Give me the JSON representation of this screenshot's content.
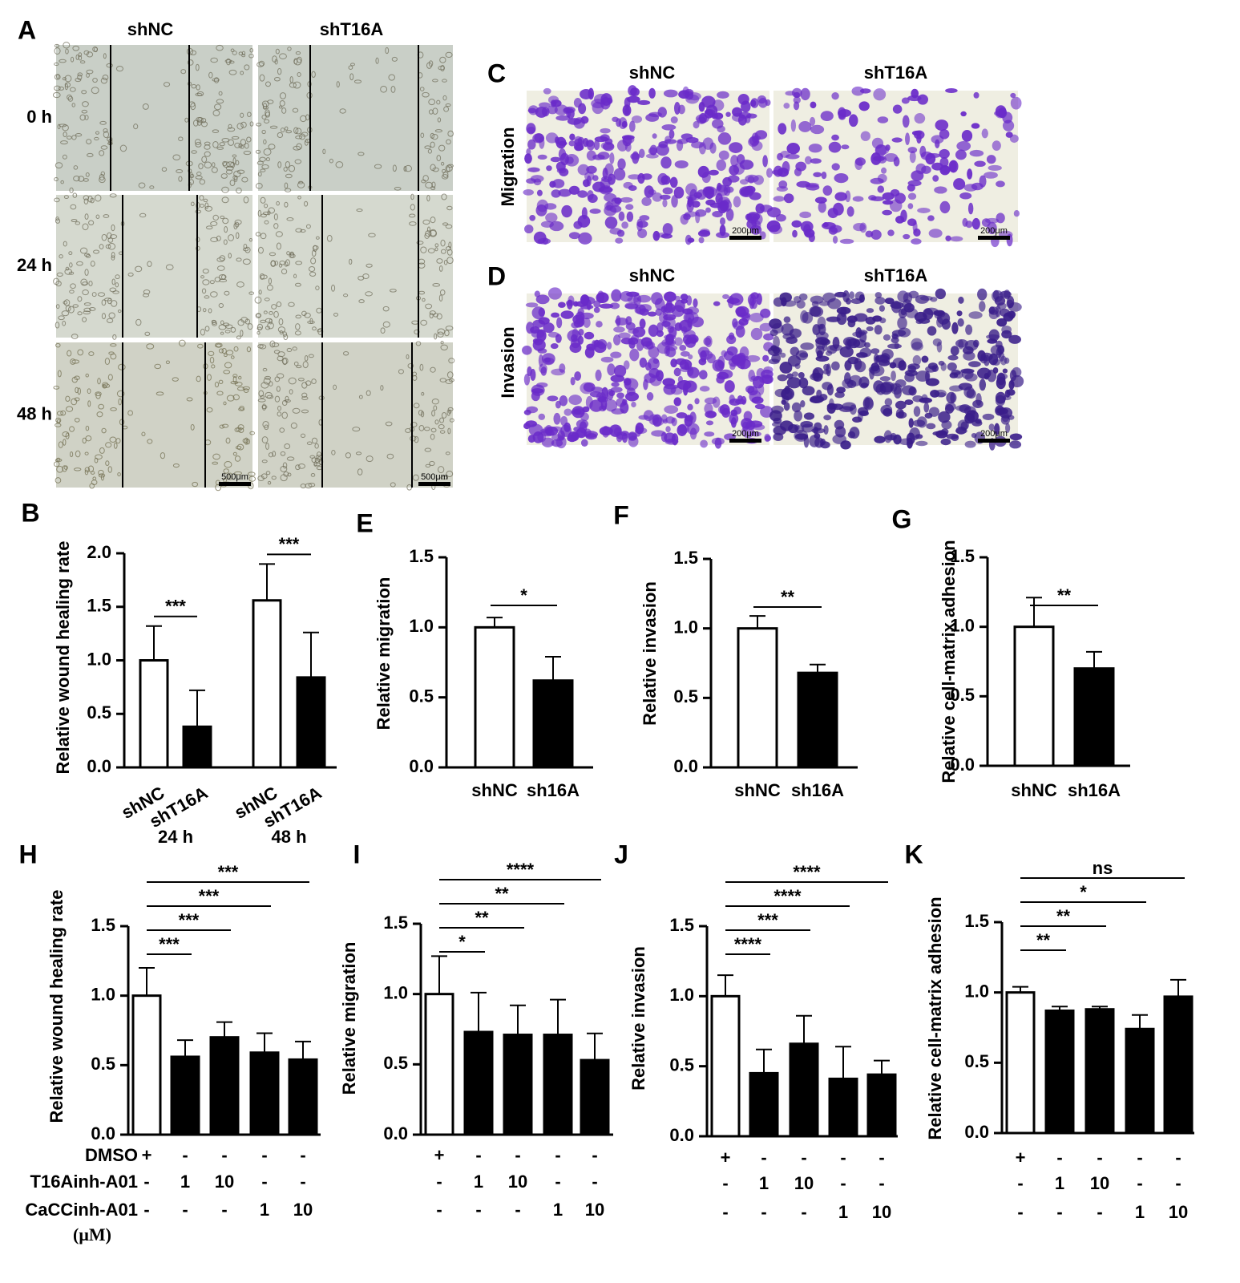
{
  "image_panels": [
    {
      "panel": "A",
      "columns": [
        "shNC",
        "shT16A"
      ],
      "rows": [
        "0 h",
        "24 h",
        "48 h"
      ],
      "scale_bar": "500μm"
    },
    {
      "panel": "C",
      "columns": [
        "shNC",
        "shT16A"
      ],
      "row_label": "Migration",
      "scale_bar": "200μm"
    },
    {
      "panel": "D",
      "columns": [
        "shNC",
        "shT16A"
      ],
      "row_label": "Invasion",
      "scale_bar": "200μm"
    }
  ],
  "chart_data": [
    {
      "type": "grouped_bar",
      "panel": "B",
      "y_label": "Relative wound healing rate",
      "groups": [
        "24 h",
        "48 h"
      ],
      "series": [
        {
          "name": "shNC",
          "color": "#ffffff",
          "values": [
            1.0,
            1.56
          ],
          "errors": [
            0.32,
            0.34
          ]
        },
        {
          "name": "shT16A",
          "color": "#000000",
          "values": [
            0.38,
            0.84
          ],
          "errors": [
            0.34,
            0.42
          ]
        }
      ],
      "significance": [
        "***",
        "***"
      ],
      "ylim": [
        0,
        2
      ],
      "yticks": [
        {
          "value": 0,
          "label": "0.0"
        },
        0.5,
        {
          "value": 1,
          "label": "1.0"
        },
        1.5,
        {
          "value": 2,
          "label": "2.0"
        }
      ]
    },
    {
      "type": "bar",
      "panel": "E",
      "y_label": "Relative migration",
      "categories": [
        "shNC",
        "sh16A"
      ],
      "values": [
        1.0,
        0.62
      ],
      "errors": [
        0.07,
        0.17
      ],
      "colors": [
        "#ffffff",
        "#000000"
      ],
      "significance": "*",
      "ylim": [
        0,
        1.5
      ],
      "yticks": [
        {
          "value": 0,
          "label": "0.0"
        },
        0.5,
        {
          "value": 1,
          "label": "1.0"
        },
        1.5
      ]
    },
    {
      "type": "bar",
      "panel": "F",
      "y_label": "Relative invasion",
      "categories": [
        "shNC",
        "sh16A"
      ],
      "values": [
        1.0,
        0.68
      ],
      "errors": [
        0.09,
        0.06
      ],
      "colors": [
        "#ffffff",
        "#000000"
      ],
      "significance": "**",
      "ylim": [
        0,
        1.5
      ],
      "yticks": [
        {
          "value": 0,
          "label": "0.0"
        },
        0.5,
        {
          "value": 1,
          "label": "1.0"
        },
        1.5
      ]
    },
    {
      "type": "bar",
      "panel": "G",
      "y_label": "Relative cell-matrix adhesion",
      "categories": [
        "shNC",
        "sh16A"
      ],
      "values": [
        1.0,
        0.7
      ],
      "errors": [
        0.21,
        0.12
      ],
      "colors": [
        "#ffffff",
        "#000000"
      ],
      "significance": "**",
      "ylim": [
        0,
        1.5
      ],
      "yticks": [
        {
          "value": 0,
          "label": "0.0"
        },
        0.5,
        {
          "value": 1,
          "label": "1.0"
        },
        1.5
      ]
    },
    {
      "type": "treatment_bar",
      "panel": "H",
      "y_label": "Relative wound healing rate",
      "values": [
        1.0,
        0.56,
        0.7,
        0.59,
        0.54
      ],
      "errors": [
        0.2,
        0.12,
        0.11,
        0.14,
        0.13
      ],
      "colors": [
        "#ffffff",
        "#000000",
        "#000000",
        "#000000",
        "#000000"
      ],
      "significance": [
        "***",
        "***",
        "***",
        "***"
      ],
      "treatments": [
        {
          "name": "DMSO",
          "values": [
            "+",
            "-",
            "-",
            "-",
            "-"
          ]
        },
        {
          "name": "T16Ainh-A01",
          "values": [
            "-",
            "1",
            "10",
            "-",
            "-"
          ]
        },
        {
          "name": "CaCCinh-A01",
          "values": [
            "-",
            "-",
            "-",
            "1",
            "10"
          ]
        }
      ],
      "unit_label": "(μM)",
      "ylim": [
        0,
        1.5
      ],
      "yticks": [
        {
          "value": 0,
          "label": "0.0"
        },
        0.5,
        {
          "value": 1,
          "label": "1.0"
        },
        1.5
      ]
    },
    {
      "type": "treatment_bar",
      "panel": "I",
      "y_label": "Relative migration",
      "values": [
        1.0,
        0.73,
        0.71,
        0.71,
        0.53
      ],
      "errors": [
        0.27,
        0.28,
        0.21,
        0.25,
        0.19
      ],
      "colors": [
        "#ffffff",
        "#000000",
        "#000000",
        "#000000",
        "#000000"
      ],
      "significance": [
        "*",
        "**",
        "**",
        "****"
      ],
      "treatments": [
        {
          "values": [
            "+",
            "-",
            "-",
            "-",
            "-"
          ]
        },
        {
          "values": [
            "-",
            "1",
            "10",
            "-",
            "-"
          ]
        },
        {
          "values": [
            "-",
            "-",
            "-",
            "1",
            "10"
          ]
        }
      ],
      "ylim": [
        0,
        1.5
      ],
      "yticks": [
        {
          "value": 0,
          "label": "0.0"
        },
        0.5,
        {
          "value": 1,
          "label": "1.0"
        },
        1.5
      ]
    },
    {
      "type": "treatment_bar",
      "panel": "J",
      "y_label": "Relative invasion",
      "values": [
        1.0,
        0.45,
        0.66,
        0.41,
        0.44
      ],
      "errors": [
        0.15,
        0.17,
        0.2,
        0.23,
        0.1
      ],
      "colors": [
        "#ffffff",
        "#000000",
        "#000000",
        "#000000",
        "#000000"
      ],
      "significance": [
        "****",
        "***",
        "****",
        "****"
      ],
      "treatments": [
        {
          "values": [
            "+",
            "-",
            "-",
            "-",
            "-"
          ]
        },
        {
          "values": [
            "-",
            "1",
            "10",
            "-",
            "-"
          ]
        },
        {
          "values": [
            "-",
            "-",
            "-",
            "1",
            "10"
          ]
        }
      ],
      "ylim": [
        0,
        1.5
      ],
      "yticks": [
        {
          "value": 0,
          "label": "0.0"
        },
        0.5,
        {
          "value": 1,
          "label": "1.0"
        },
        1.5
      ]
    },
    {
      "type": "treatment_bar",
      "panel": "K",
      "y_label": "Relative cell-matrix adhesion",
      "values": [
        1.0,
        0.87,
        0.88,
        0.74,
        0.97
      ],
      "errors": [
        0.04,
        0.03,
        0.02,
        0.1,
        0.12
      ],
      "colors": [
        "#ffffff",
        "#000000",
        "#000000",
        "#000000",
        "#000000"
      ],
      "significance": [
        "**",
        "**",
        "*",
        "ns"
      ],
      "treatments": [
        {
          "values": [
            "+",
            "-",
            "-",
            "-",
            "-"
          ]
        },
        {
          "values": [
            "-",
            "1",
            "10",
            "-",
            "-"
          ]
        },
        {
          "values": [
            "-",
            "-",
            "-",
            "1",
            "10"
          ]
        }
      ],
      "ylim": [
        0,
        1.5
      ],
      "yticks": [
        {
          "value": 0,
          "label": "0.0"
        },
        0.5,
        {
          "value": 1,
          "label": "1.0"
        },
        1.5
      ]
    }
  ]
}
